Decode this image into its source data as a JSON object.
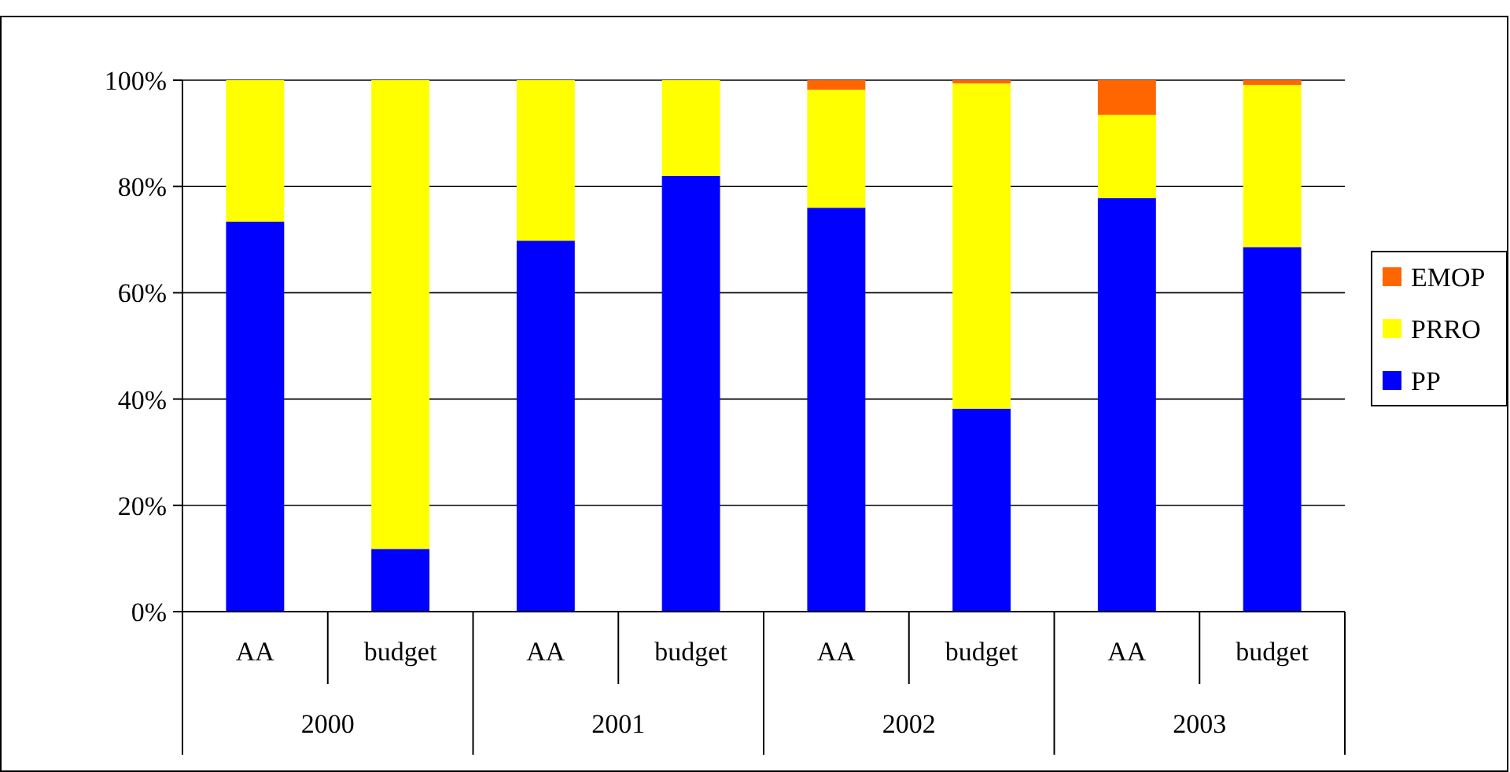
{
  "chart_data": {
    "type": "bar",
    "stacked": true,
    "categories": [
      "AA",
      "budget",
      "AA",
      "budget",
      "AA",
      "budget",
      "AA",
      "budget"
    ],
    "annotations": [
      "2000",
      "2001",
      "2002",
      "2003"
    ],
    "series": [
      {
        "name": "PP",
        "color": "#0000ff",
        "values": [
          73.4,
          11.8,
          69.8,
          82,
          76,
          38.2,
          77.8,
          68.6
        ]
      },
      {
        "name": "PRRO",
        "color": "#ffff00",
        "values": [
          26.6,
          88.2,
          30.2,
          18,
          22.2,
          61.2,
          15.7,
          30.5
        ]
      },
      {
        "name": "EMOP",
        "color": "#ff6600",
        "values": [
          0,
          0,
          0,
          0,
          1.8,
          0.6,
          6.5,
          0.9
        ]
      }
    ],
    "ylim": [
      0,
      100
    ],
    "yticks": [
      {
        "value": 0,
        "label": "0%"
      },
      {
        "value": 20,
        "label": "20%"
      },
      {
        "value": 40,
        "label": "40%"
      },
      {
        "value": 60,
        "label": "60%"
      },
      {
        "value": 80,
        "label": "80%"
      },
      {
        "value": 100,
        "label": "100%"
      }
    ],
    "grid": "y",
    "legend": "right"
  }
}
